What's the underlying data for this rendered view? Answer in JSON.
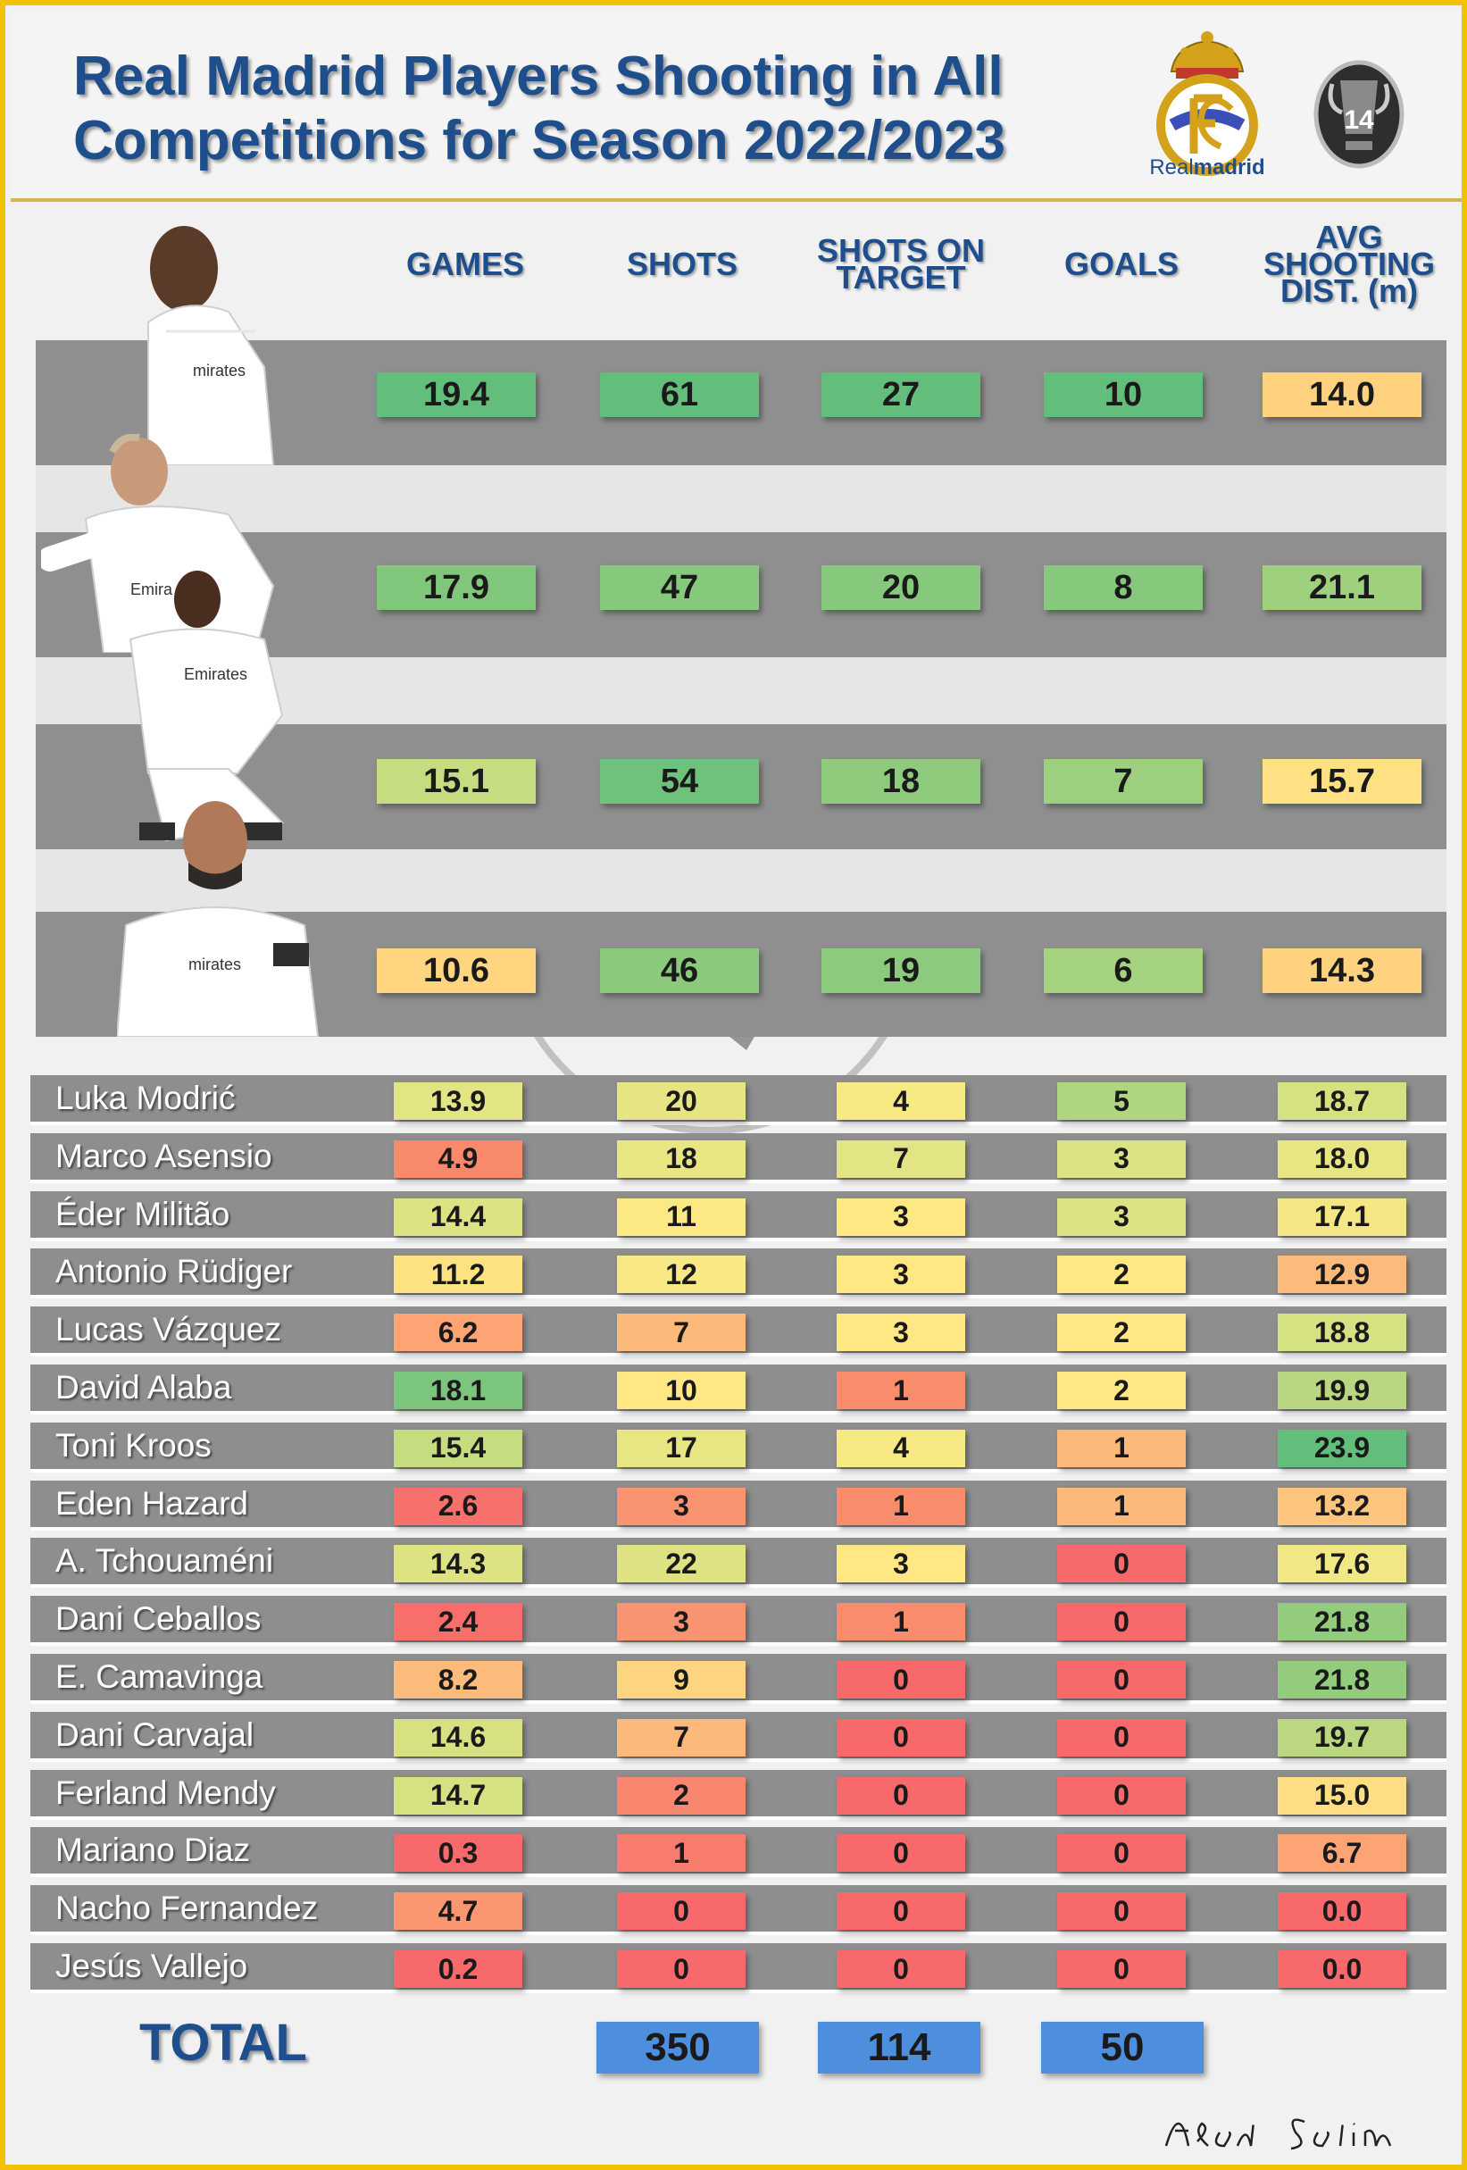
{
  "title_lines": [
    "Real Madrid Players Shooting in All",
    "Competitions for Season 2022/2023"
  ],
  "brand": {
    "wordmark_part1": "Real",
    "wordmark_part2": "madrid",
    "ucl_titles": "14"
  },
  "colors": {
    "title_blue": "#1f4e8c",
    "frame_gold": "#f2c200",
    "total_blue": "#4d8fdc"
  },
  "icons": [
    "real-madrid-crest-icon",
    "champions-league-trophy-icon",
    "club-crest-watermark-icon"
  ],
  "signature": "Asad Salim",
  "chart_data": {
    "type": "table",
    "columns": [
      "GAMES",
      "SHOTS",
      "SHOTS ON TARGET",
      "GOALS",
      "AVG SHOOTING DIST. (m)"
    ],
    "featured_rows": [
      {
        "values": [
          "19.4",
          "61",
          "27",
          "10",
          "14.0"
        ],
        "colors": [
          "#63be7b",
          "#63be7b",
          "#63be7b",
          "#63be7b",
          "#ffd27f"
        ]
      },
      {
        "values": [
          "17.9",
          "47",
          "20",
          "8",
          "21.1"
        ],
        "colors": [
          "#80c77c",
          "#86c97d",
          "#86c97d",
          "#86c97d",
          "#9fd07e"
        ]
      },
      {
        "values": [
          "15.1",
          "54",
          "18",
          "7",
          "15.7"
        ],
        "colors": [
          "#c6dc80",
          "#6ec27c",
          "#8fcb7d",
          "#9ccf7e",
          "#ffe083"
        ]
      },
      {
        "values": [
          "10.6",
          "46",
          "19",
          "6",
          "14.3"
        ],
        "colors": [
          "#ffd67f",
          "#8bc97d",
          "#8ccb7d",
          "#a5d27e",
          "#ffd27f"
        ]
      }
    ],
    "rows": [
      {
        "name": "Luka Modrić",
        "values": [
          "13.9",
          "20",
          "4",
          "5",
          "18.7"
        ],
        "colors": [
          "#e3e483",
          "#e6e483",
          "#f7e984",
          "#b0d57f",
          "#d6e182"
        ]
      },
      {
        "name": "Marco Asensio",
        "values": [
          "4.9",
          "18",
          "7",
          "3",
          "18.0"
        ],
        "colors": [
          "#f8896b",
          "#e8e583",
          "#e3e483",
          "#dde283",
          "#e8e583"
        ]
      },
      {
        "name": "Éder Militão",
        "values": [
          "14.4",
          "11",
          "3",
          "3",
          "17.1"
        ],
        "colors": [
          "#dde283",
          "#fde984",
          "#ffe884",
          "#dde283",
          "#f5e884"
        ]
      },
      {
        "name": "Antonio Rüdiger",
        "values": [
          "11.2",
          "12",
          "3",
          "2",
          "12.9"
        ],
        "colors": [
          "#ffe383",
          "#f9e984",
          "#ffe884",
          "#ffe884",
          "#fdbb7b"
        ]
      },
      {
        "name": "Lucas Vázquez",
        "values": [
          "6.2",
          "7",
          "3",
          "2",
          "18.8"
        ],
        "colors": [
          "#fca474",
          "#fcb97a",
          "#ffe884",
          "#ffe884",
          "#d6e182"
        ]
      },
      {
        "name": "David Alaba",
        "values": [
          "18.1",
          "10",
          "1",
          "2",
          "19.9"
        ],
        "colors": [
          "#7cc57c",
          "#ffe784",
          "#f98c6d",
          "#ffe884",
          "#b8d780"
        ]
      },
      {
        "name": "Toni Kroos",
        "values": [
          "15.4",
          "17",
          "4",
          "1",
          "23.9"
        ],
        "colors": [
          "#c6dc80",
          "#e8e583",
          "#f7e984",
          "#fcb97a",
          "#63be7b"
        ]
      },
      {
        "name": "Eden Hazard",
        "values": [
          "2.6",
          "3",
          "1",
          "1",
          "13.2"
        ],
        "colors": [
          "#f8706b",
          "#fa9470",
          "#f98c6d",
          "#fcb97a",
          "#fdc57d"
        ]
      },
      {
        "name": "A. Tchouaméni",
        "values": [
          "14.3",
          "22",
          "3",
          "0",
          "17.6"
        ],
        "colors": [
          "#dde283",
          "#dfe283",
          "#ffe884",
          "#f8696b",
          "#f1e784"
        ]
      },
      {
        "name": "Dani Ceballos",
        "values": [
          "2.4",
          "3",
          "1",
          "0",
          "21.8"
        ],
        "colors": [
          "#f86e6b",
          "#fa9470",
          "#f98c6d",
          "#f8696b",
          "#94cc7e"
        ]
      },
      {
        "name": "E. Camavinga",
        "values": [
          "8.2",
          "9",
          "0",
          "0",
          "21.8"
        ],
        "colors": [
          "#fdbb7b",
          "#fdd580",
          "#f8696b",
          "#f8696b",
          "#94cc7e"
        ]
      },
      {
        "name": "Dani Carvajal",
        "values": [
          "14.6",
          "7",
          "0",
          "0",
          "19.7"
        ],
        "colors": [
          "#d8e182",
          "#fcb97a",
          "#f8696b",
          "#f8696b",
          "#bbd880"
        ]
      },
      {
        "name": "Ferland Mendy",
        "values": [
          "14.7",
          "2",
          "0",
          "0",
          "15.0"
        ],
        "colors": [
          "#d6e182",
          "#f98770",
          "#f8696b",
          "#f8696b",
          "#ffdd82"
        ]
      },
      {
        "name": "Mariano Diaz",
        "values": [
          "0.3",
          "1",
          "0",
          "0",
          "6.7"
        ],
        "colors": [
          "#f8696b",
          "#f87c6d",
          "#f8696b",
          "#f8696b",
          "#fca474"
        ]
      },
      {
        "name": "Nacho Fernandez",
        "values": [
          "4.7",
          "0",
          "0",
          "0",
          "0.0"
        ],
        "colors": [
          "#fa9770",
          "#f8696b",
          "#f8696b",
          "#f8696b",
          "#f8696b"
        ]
      },
      {
        "name": "Jesús Vallejo",
        "values": [
          "0.2",
          "0",
          "0",
          "0",
          "0.0"
        ],
        "colors": [
          "#f8696b",
          "#f8696b",
          "#f8696b",
          "#f8696b",
          "#f8696b"
        ]
      }
    ],
    "totals": {
      "label": "TOTAL",
      "values": [
        "",
        "350",
        "114",
        "50",
        ""
      ]
    }
  }
}
